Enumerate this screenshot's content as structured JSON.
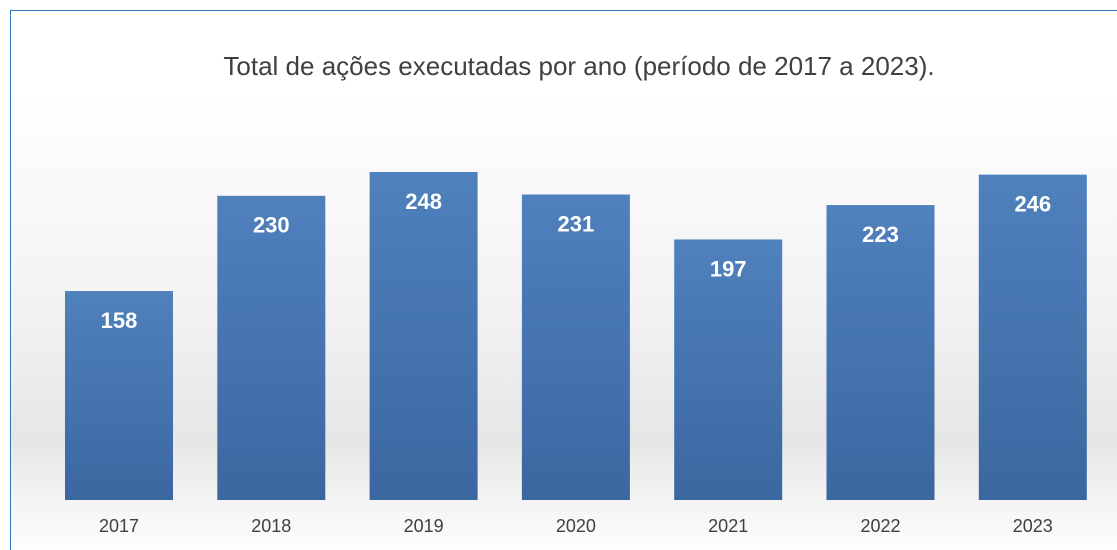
{
  "chart_data": {
    "type": "bar",
    "title": "Total de ações executadas por ano (período de 2017 a 2023).",
    "categories": [
      "2017",
      "2018",
      "2019",
      "2020",
      "2021",
      "2022",
      "2023"
    ],
    "values": [
      158,
      230,
      248,
      231,
      197,
      223,
      246
    ],
    "color": "#4a7ab8"
  }
}
